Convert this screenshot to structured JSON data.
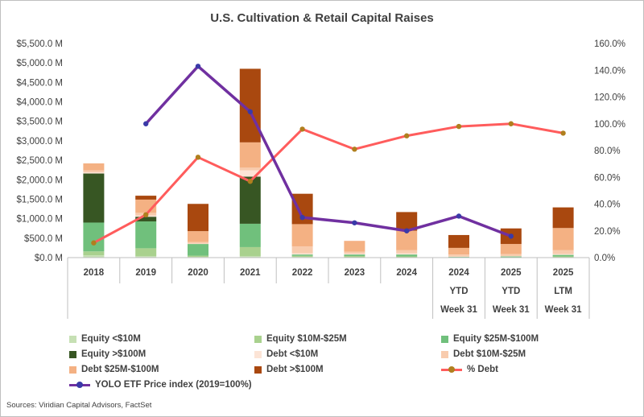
{
  "chart_data": {
    "type": "bar",
    "stacked": true,
    "title": "U.S. Cultivation & Retail Capital Raises",
    "categories": [
      [
        "2018"
      ],
      [
        "2019"
      ],
      [
        "2020"
      ],
      [
        "2021"
      ],
      [
        "2022"
      ],
      [
        "2023"
      ],
      [
        "2024"
      ],
      [
        "2024",
        "YTD",
        "Week 31"
      ],
      [
        "2025",
        "YTD",
        "Week 31"
      ],
      [
        "2025",
        "LTM",
        "Week 31"
      ]
    ],
    "y_left": {
      "ylim": [
        0,
        5500
      ],
      "ticks": [
        0,
        500,
        1000,
        1500,
        2000,
        2500,
        3000,
        3500,
        4000,
        4500,
        5000,
        5500
      ],
      "tick_labels": [
        "$0.0 M",
        "$500.0 M",
        "$1,000.0 M",
        "$1,500.0 M",
        "$2,000.0 M",
        "$2,500.0 M",
        "$3,000.0 M",
        "$3,500.0 M",
        "$4,000.0 M",
        "$4,500.0 M",
        "$5,000.0 M",
        "$5,500.0 M"
      ]
    },
    "y_right": {
      "ylim": [
        0,
        160
      ],
      "ticks": [
        0,
        20,
        40,
        60,
        80,
        100,
        120,
        140,
        160
      ],
      "tick_labels": [
        "0.0%",
        "20.0%",
        "40.0%",
        "60.0%",
        "80.0%",
        "100.0%",
        "120.0%",
        "140.0%",
        "160.0%"
      ]
    },
    "grid": false,
    "legend_position": "bottom",
    "bar_series": [
      {
        "name": "Equity <$10M",
        "color": "#c6e0b4",
        "values": [
          60,
          40,
          20,
          40,
          20,
          10,
          10,
          5,
          5,
          10
        ]
      },
      {
        "name": "Equity $10M-$25M",
        "color": "#a9d18e",
        "values": [
          100,
          200,
          30,
          230,
          25,
          30,
          20,
          5,
          5,
          20
        ]
      },
      {
        "name": "Equity $25M-$100M",
        "color": "#70c07c",
        "values": [
          740,
          690,
          300,
          600,
          35,
          40,
          50,
          10,
          20,
          40
        ]
      },
      {
        "name": "Equity >$100M",
        "color": "#375623",
        "values": [
          1260,
          120,
          0,
          1210,
          0,
          0,
          0,
          0,
          0,
          0
        ]
      },
      {
        "name": "Debt <$10M",
        "color": "#fce4d6",
        "values": [
          30,
          30,
          10,
          160,
          30,
          20,
          30,
          10,
          10,
          20
        ]
      },
      {
        "name": "Debt $10M-$25M",
        "color": "#f8cbad",
        "values": [
          50,
          70,
          40,
          70,
          180,
          50,
          80,
          50,
          50,
          100
        ]
      },
      {
        "name": "Debt $25M-$100M",
        "color": "#f4b183",
        "values": [
          180,
          340,
          280,
          650,
          570,
          280,
          500,
          170,
          260,
          570
        ]
      },
      {
        "name": "Debt >$100M",
        "color": "#a9480f",
        "values": [
          0,
          100,
          700,
          1890,
          780,
          0,
          480,
          330,
          400,
          530
        ]
      }
    ],
    "line_series": [
      {
        "name": "% Debt",
        "axis": "right",
        "color": "#ff5c5c",
        "marker_color": "#b07f1e",
        "values": [
          11,
          32,
          75,
          57,
          96,
          81,
          91,
          98,
          100,
          93
        ]
      },
      {
        "name": "YOLO ETF Price index (2019=100%)",
        "axis": "right",
        "color": "#7030a0",
        "marker_color": "#3a3aa8",
        "values": [
          null,
          100,
          143,
          109,
          30,
          26,
          20,
          31,
          16,
          null
        ]
      }
    ],
    "legend_rows": [
      [
        "Equity <$10M",
        "Equity $10M-$25M",
        "Equity $25M-$100M"
      ],
      [
        "Equity >$100M",
        "Debt <$10M",
        "Debt $10M-$25M"
      ],
      [
        "Debt $25M-$100M",
        "Debt >$100M",
        "% Debt"
      ],
      [
        "YOLO ETF Price index (2019=100%)"
      ]
    ]
  },
  "source": "Sources: Viridian Capital Advisors, FactSet"
}
